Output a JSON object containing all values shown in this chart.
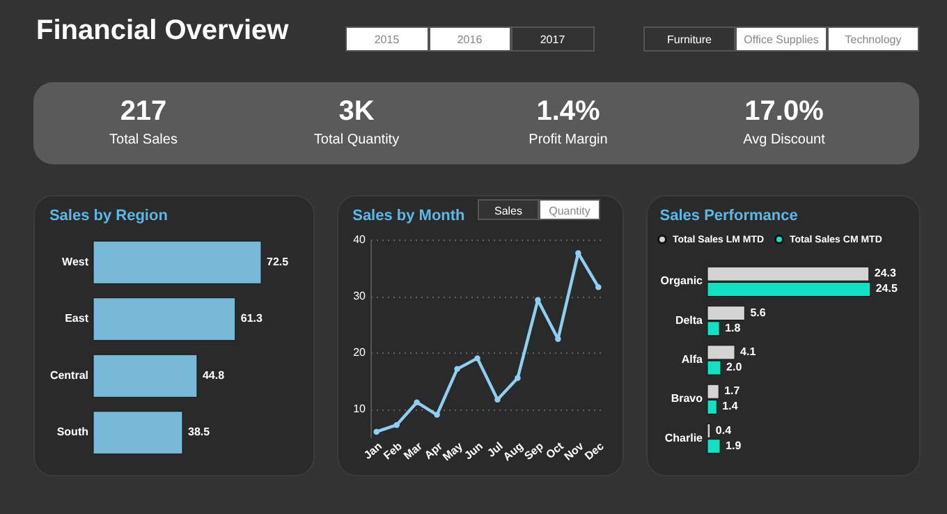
{
  "chart_data": [
    {
      "type": "other",
      "title": "Financial Overview",
      "annotations": [
        "2015",
        "2016",
        "2017",
        "Furniture",
        "Office Supplies",
        "Technology"
      ],
      "categories": [
        "Total Sales",
        "Total Quantity",
        "Profit Margin",
        "Avg Discount"
      ],
      "value_labels": [
        "217",
        "3K",
        "1.4%",
        "17.0%"
      ]
    },
    {
      "type": "bar",
      "orientation": "horizontal",
      "title": "Sales by Region",
      "categories": [
        "West",
        "East",
        "Central",
        "South"
      ],
      "values": [
        72.5,
        61.3,
        44.8,
        38.5
      ],
      "color": "#78b9d8",
      "data_labels": true,
      "tick_labels": "y"
    },
    {
      "type": "line",
      "title": "Sales by Month",
      "annotations": [
        "Sales",
        "Quantity"
      ],
      "categories": [
        "Jan",
        "Feb",
        "Mar",
        "Apr",
        "May",
        "Jun",
        "Jul",
        "Aug",
        "Sep",
        "Oct",
        "Nov",
        "Dec"
      ],
      "values": [
        6.0,
        7.2,
        11.2,
        9.0,
        17.1,
        19.0,
        11.7,
        15.5,
        29.3,
        22.4,
        37.6,
        31.6
      ],
      "color": "#8fcff2",
      "ylim": [
        5,
        40
      ],
      "yticks": [
        10,
        20,
        30,
        40
      ],
      "grid": "y",
      "marker": "circle",
      "line_style": "solid"
    },
    {
      "type": "bar",
      "orientation": "horizontal",
      "title": "Sales Performance",
      "categories": [
        "Organic",
        "Delta",
        "Alfa",
        "Bravo",
        "Charlie"
      ],
      "series": [
        {
          "name": "Total Sales LM MTD",
          "color": "#d4d4d4",
          "values": [
            24.3,
            5.6,
            4.1,
            1.7,
            0.4
          ],
          "value_labels": [
            "24.3",
            "5.6",
            "4.1",
            "1.7",
            "0.4"
          ]
        },
        {
          "name": "Total Sales CM MTD",
          "color": "#12e0c2",
          "values": [
            24.5,
            1.8,
            2.0,
            1.4,
            1.9
          ],
          "value_labels": [
            "24.5",
            "1.8",
            "2.0",
            "1.4",
            "1.9"
          ]
        }
      ],
      "legend": "top",
      "tick_labels": "y"
    }
  ]
}
